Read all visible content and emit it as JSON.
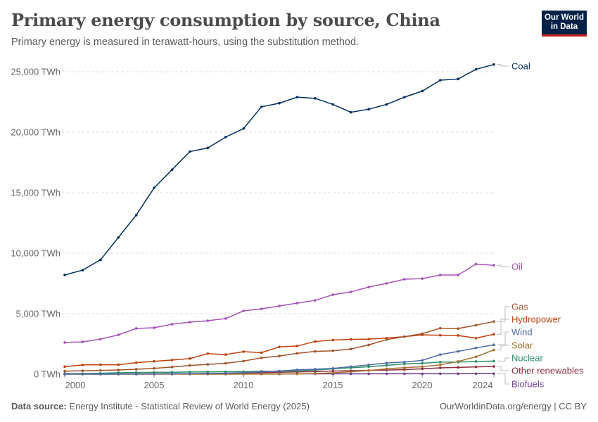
{
  "header": {
    "title": "Primary energy consumption by source, China",
    "subtitle": "Primary energy is measured in terawatt-hours, using the substitution method.",
    "logo_text": "Our World in Data"
  },
  "footer": {
    "source_label": "Data source:",
    "source_text": "Energy Institute - Statistical Review of World Energy (2025)",
    "credit": "OurWorldinData.org/energy | CC BY"
  },
  "chart_data": {
    "type": "line",
    "title": "Primary energy consumption by source, China",
    "ylabel": "",
    "xlabel": "",
    "x": [
      2000,
      2001,
      2002,
      2003,
      2004,
      2005,
      2006,
      2007,
      2008,
      2009,
      2010,
      2011,
      2012,
      2013,
      2014,
      2015,
      2016,
      2017,
      2018,
      2019,
      2020,
      2021,
      2022,
      2023,
      2024
    ],
    "xlim": [
      2000,
      2024
    ],
    "ylim": [
      0,
      25000
    ],
    "x_ticks": [
      "2000",
      "2005",
      "2010",
      "2015",
      "2020",
      "2024"
    ],
    "y_ticks": [
      "0 TWh",
      "5,000 TWh",
      "10,000 TWh",
      "15,000 TWh",
      "20,000 TWh",
      "25,000 TWh"
    ],
    "grid": "horizontal dashed",
    "legend": "right, labels at line ends",
    "series": [
      {
        "name": "Coal",
        "color": "#002d5f",
        "values": [
          8200,
          8600,
          9450,
          11300,
          13150,
          15400,
          16900,
          18400,
          18700,
          19600,
          20300,
          22100,
          22400,
          22900,
          22800,
          22300,
          21650,
          21900,
          22300,
          22900,
          23400,
          24300,
          24400,
          25200,
          25600
        ]
      },
      {
        "name": "Oil",
        "color": "#a652ba",
        "values": [
          2620,
          2670,
          2900,
          3250,
          3780,
          3840,
          4130,
          4300,
          4420,
          4600,
          5230,
          5400,
          5640,
          5870,
          6100,
          6570,
          6800,
          7200,
          7500,
          7850,
          7900,
          8200,
          8200,
          9100,
          9000
        ]
      },
      {
        "name": "Gas",
        "color": "#a2522a",
        "values": [
          250,
          280,
          310,
          350,
          410,
          480,
          590,
          720,
          810,
          900,
          1080,
          1350,
          1500,
          1720,
          1880,
          1930,
          2080,
          2420,
          2860,
          3100,
          3350,
          3800,
          3770,
          4050,
          4350
        ]
      },
      {
        "name": "Hydropower",
        "color": "#c2400a",
        "values": [
          620,
          760,
          780,
          780,
          950,
          1060,
          1170,
          1290,
          1700,
          1620,
          1860,
          1780,
          2250,
          2330,
          2700,
          2820,
          2880,
          2900,
          2980,
          3100,
          3250,
          3220,
          3200,
          2980,
          3300
        ]
      },
      {
        "name": "Wind",
        "color": "#4c6ba6",
        "values": [
          5,
          7,
          9,
          12,
          15,
          20,
          30,
          40,
          50,
          70,
          130,
          200,
          260,
          360,
          410,
          480,
          620,
          770,
          920,
          1000,
          1140,
          1620,
          1880,
          2170,
          2430
        ]
      },
      {
        "name": "Solar",
        "color": "#a8702e",
        "values": [
          0,
          0,
          0,
          0,
          0,
          1,
          1,
          1,
          2,
          3,
          5,
          7,
          10,
          20,
          60,
          110,
          200,
          300,
          450,
          540,
          620,
          770,
          1050,
          1440,
          2000
        ]
      },
      {
        "name": "Nuclear",
        "color": "#2c8f65",
        "values": [
          45,
          50,
          70,
          120,
          140,
          150,
          160,
          180,
          190,
          200,
          210,
          240,
          250,
          280,
          340,
          440,
          530,
          620,
          730,
          850,
          900,
          1000,
          1000,
          1050,
          1080
        ]
      },
      {
        "name": "Other renewables",
        "color": "#8a2d3a",
        "values": [
          10,
          12,
          15,
          18,
          22,
          28,
          35,
          45,
          60,
          80,
          100,
          130,
          160,
          190,
          220,
          260,
          280,
          310,
          340,
          380,
          440,
          520,
          560,
          600,
          640
        ]
      },
      {
        "name": "Biofuels",
        "color": "#6d3e91",
        "values": [
          5,
          5,
          6,
          8,
          10,
          12,
          15,
          18,
          20,
          22,
          25,
          25,
          25,
          28,
          30,
          30,
          30,
          32,
          35,
          35,
          35,
          38,
          38,
          40,
          40
        ]
      }
    ]
  }
}
